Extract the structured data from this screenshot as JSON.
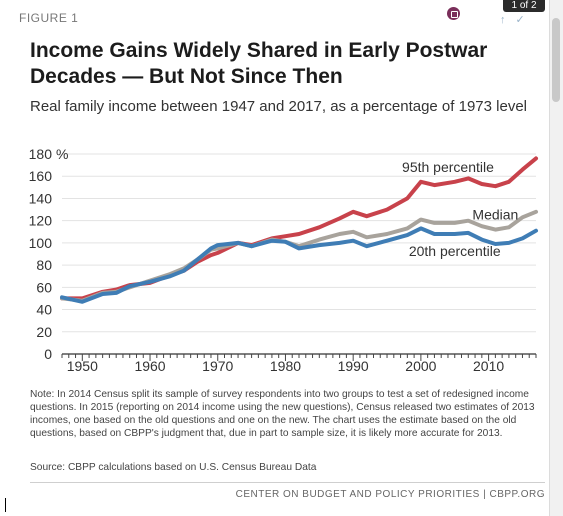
{
  "figure_label": "FIGURE 1",
  "pager": "1 of 2",
  "title": "Income Gains Widely Shared in Early Postwar Decades — But Not Since Then",
  "subtitle": "Real family income between 1947 and 2017, as a percentage of 1973 level",
  "note": "Note: In 2014 Census split its sample of survey respondents into two groups to test a set of redesigned income questions. In 2015 (reporting on 2014 income using the new questions), Census released two estimates of 2013 incomes, one based on the old questions and one on the new. The chart uses the estimate based on the old questions, based on CBPP's judgment that, due in part to sample size, it is likely more accurate for 2013.",
  "source": "Source: CBPP calculations based on U.S. Census Bureau Data",
  "footer": "CENTER ON BUDGET AND POLICY PRIORITIES | CBPP.ORG",
  "icons": {
    "embed": "embed-icon",
    "share": [
      "share-icon",
      "twitter-icon"
    ]
  },
  "chart_data": {
    "type": "line",
    "title": "Income Gains Widely Shared in Early Postwar Decades — But Not Since Then",
    "subtitle": "Real family income between 1947 and 2017, as a percentage of 1973 level",
    "xlabel": "",
    "ylabel": "",
    "xlim": [
      1947,
      2017
    ],
    "ylim": [
      0,
      180
    ],
    "y_ticks": [
      "0",
      "20",
      "40",
      "60",
      "80",
      "100",
      "120",
      "140",
      "160",
      "180 %"
    ],
    "x_ticks": [
      "1950",
      "1960",
      "1970",
      "1980",
      "1990",
      "2000",
      "2010"
    ],
    "grid": true,
    "x": [
      1947,
      1950,
      1953,
      1955,
      1957,
      1960,
      1963,
      1965,
      1967,
      1969,
      1970,
      1973,
      1975,
      1978,
      1980,
      1982,
      1985,
      1988,
      1990,
      1992,
      1995,
      1998,
      2000,
      2002,
      2005,
      2007,
      2009,
      2011,
      2013,
      2015,
      2017
    ],
    "series": [
      {
        "name": "95th percentile",
        "color": "#c8424b",
        "values": [
          50,
          50,
          56,
          58,
          62,
          64,
          71,
          75,
          83,
          89,
          91,
          100,
          98,
          104,
          106,
          108,
          114,
          122,
          128,
          124,
          130,
          140,
          155,
          152,
          155,
          158,
          153,
          151,
          155,
          166,
          176
        ]
      },
      {
        "name": "Median",
        "color": "#a8a39c",
        "values": [
          50,
          48,
          55,
          56,
          60,
          66,
          72,
          77,
          85,
          94,
          95,
          100,
          97,
          103,
          101,
          97,
          103,
          108,
          110,
          105,
          108,
          113,
          121,
          118,
          118,
          120,
          115,
          112,
          114,
          123,
          128
        ]
      },
      {
        "name": "20th percentile",
        "color": "#3f7db5",
        "values": [
          51,
          47,
          54,
          55,
          61,
          65,
          70,
          75,
          85,
          95,
          98,
          100,
          97,
          102,
          101,
          95,
          98,
          100,
          102,
          97,
          102,
          107,
          113,
          108,
          108,
          109,
          103,
          99,
          100,
          104,
          111
        ]
      }
    ]
  }
}
